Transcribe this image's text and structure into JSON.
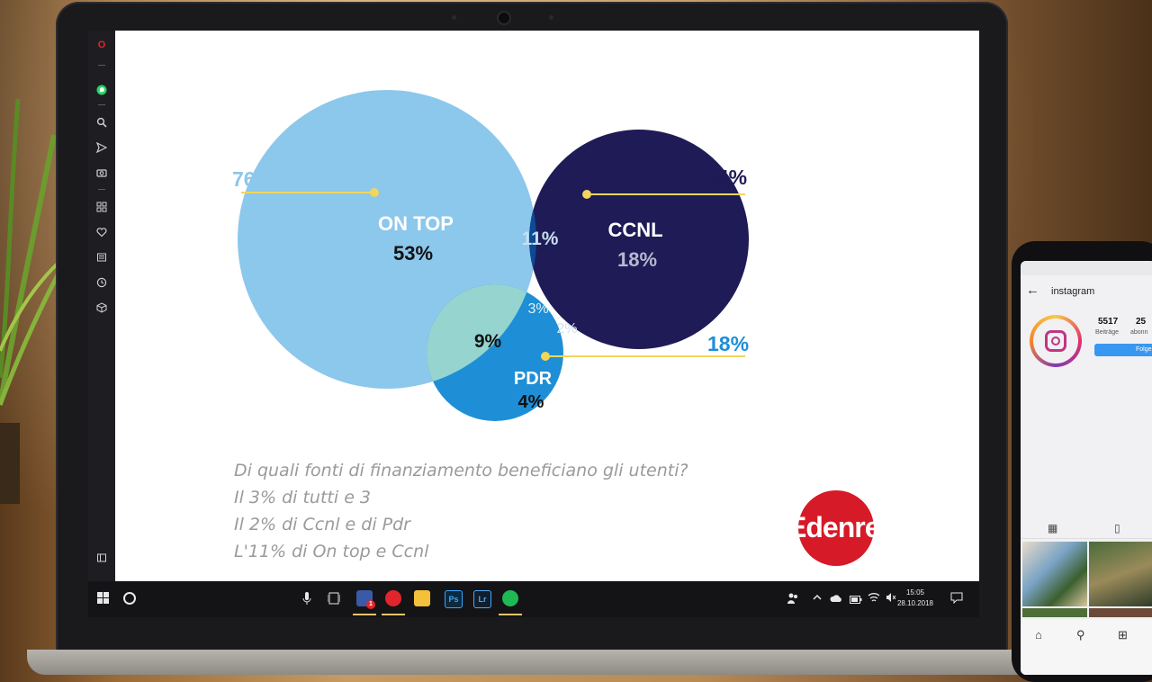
{
  "diagram": {
    "sets": [
      {
        "name": "ON TOP",
        "only": "53%",
        "total": "76%",
        "color": "#8cc7ec"
      },
      {
        "name": "CCNL",
        "only": "18%",
        "total": "34%",
        "color": "#1f1b57"
      },
      {
        "name": "PDR",
        "only": "4%",
        "total": "18%",
        "color": "#1e8fd6"
      }
    ],
    "overlaps": {
      "ontop_ccnl": "11%",
      "all_three": "3%",
      "ccnl_pdr": "2%",
      "ontop_pdr": "9%"
    },
    "caption": [
      "Di quali fonti di finanziamento beneficiano gli utenti?",
      "Il 3% di tutti e 3",
      "Il 2% di Ccnl e di Pdr",
      "L'11% di On top e Ccnl"
    ],
    "logo": "Edenred"
  },
  "taskbar": {
    "apps": [
      "Ps",
      "Lr"
    ],
    "badge": "1",
    "time": "15:05",
    "date": "28.10.2018",
    "icons": [
      "windows-start-icon",
      "cortana-icon",
      "microphone-icon",
      "task-view-icon",
      "opera-icon",
      "file-explorer-icon",
      "spotify-icon",
      "people-icon",
      "chevron-up-icon",
      "cloud-icon",
      "battery-icon",
      "wifi-icon",
      "volume-icon",
      "notification-icon"
    ]
  },
  "sidebar": {
    "icons": [
      "opera-logo-icon",
      "whatsapp-icon",
      "search-icon",
      "send-icon",
      "camera-icon",
      "speed-dial-icon",
      "heart-icon",
      "news-icon",
      "history-icon",
      "box-icon",
      "sidebar-toggle-icon"
    ]
  },
  "phone": {
    "app_title": "instagram",
    "posts": "5517",
    "posts_label": "Beiträge",
    "followers": "25",
    "followers_label": "abonn",
    "follow_button": "Folge"
  },
  "colors": {
    "ontop": "#8cc7ec",
    "ccnl": "#1f1b57",
    "pdr": "#1e8fd6",
    "leader": "#f1d65a",
    "edenred": "#d61a28"
  }
}
